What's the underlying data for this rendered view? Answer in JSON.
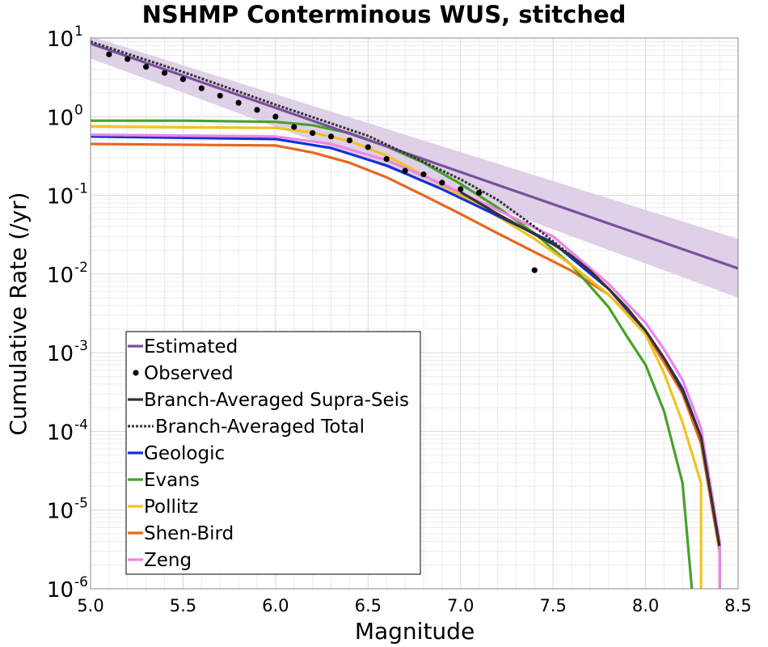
{
  "chart_data": {
    "type": "line",
    "title": "NSHMP Conterminous WUS, stitched",
    "xlabel": "Magnitude",
    "ylabel": "Cumulative Rate (/yr)",
    "xlim": [
      5.0,
      8.5
    ],
    "ylim": [
      1e-06,
      10
    ],
    "yscale": "log",
    "grid": true,
    "legend_position": "bottom-left",
    "x_ticks": [
      "5.0",
      "5.5",
      "6.0",
      "6.5",
      "7.0",
      "7.5",
      "8.0",
      "8.5"
    ],
    "y_ticks": [
      {
        "base": "10",
        "exp": "1",
        "value": 10
      },
      {
        "base": "10",
        "exp": "0",
        "value": 1
      },
      {
        "base": "10",
        "exp": "-1",
        "value": 0.1
      },
      {
        "base": "10",
        "exp": "-2",
        "value": 0.01
      },
      {
        "base": "10",
        "exp": "-3",
        "value": 0.001
      },
      {
        "base": "10",
        "exp": "-4",
        "value": 0.0001
      },
      {
        "base": "10",
        "exp": "-5",
        "value": 1e-05
      },
      {
        "base": "10",
        "exp": "-6",
        "value": 1e-06
      }
    ],
    "uncertainty_band": {
      "name": "Estimated",
      "color": "#dccde6",
      "x": [
        5.0,
        8.5
      ],
      "lower": [
        5.5,
        0.005
      ],
      "upper": [
        10.5,
        0.028
      ]
    },
    "series": [
      {
        "name": "Estimated",
        "kind": "line",
        "color": "#7a4e9c",
        "x": [
          5.0,
          8.5
        ],
        "y": [
          8.5,
          0.0118
        ]
      },
      {
        "name": "Observed",
        "kind": "scatter",
        "color": "#000000",
        "x": [
          5.1,
          5.2,
          5.3,
          5.4,
          5.5,
          5.6,
          5.7,
          5.8,
          5.9,
          6.0,
          6.1,
          6.2,
          6.3,
          6.4,
          6.5,
          6.6,
          6.7,
          6.8,
          6.9,
          7.0,
          7.1,
          7.4
        ],
        "y": [
          6.2,
          5.4,
          4.3,
          3.6,
          3.0,
          2.3,
          1.85,
          1.5,
          1.22,
          1.0,
          0.74,
          0.62,
          0.56,
          0.5,
          0.41,
          0.29,
          0.205,
          0.185,
          0.145,
          0.12,
          0.108,
          0.0112
        ]
      },
      {
        "name": "Branch-Averaged Supra-Seis",
        "kind": "line",
        "color": "#333333",
        "x": [
          7.0,
          7.1,
          7.2,
          7.3,
          7.4,
          7.5,
          7.6,
          7.7,
          7.8,
          7.9,
          8.0,
          8.1,
          8.2,
          8.3,
          8.4
        ],
        "y": [
          0.11,
          0.08,
          0.058,
          0.043,
          0.032,
          0.024,
          0.017,
          0.011,
          0.0065,
          0.0037,
          0.0019,
          0.00085,
          0.00033,
          8.5e-05,
          3.5e-06
        ]
      },
      {
        "name": "Branch-Averaged Total",
        "kind": "dotted",
        "color": "#333333",
        "x": [
          5.0,
          5.5,
          6.0,
          6.5,
          7.0,
          7.2,
          7.4,
          7.6
        ],
        "y": [
          9.0,
          3.7,
          1.42,
          0.57,
          0.16,
          0.088,
          0.04,
          0.017
        ]
      },
      {
        "name": "Geologic",
        "kind": "line",
        "color": "#1432d2",
        "x": [
          5.0,
          6.0,
          6.3,
          6.6,
          6.9,
          7.2,
          7.5,
          7.8,
          8.0,
          8.1,
          8.2,
          8.3,
          8.4,
          8.4
        ],
        "y": [
          0.56,
          0.52,
          0.4,
          0.24,
          0.12,
          0.055,
          0.025,
          0.0065,
          0.0019,
          0.00085,
          0.00035,
          8.5e-05,
          3.5e-06,
          1e-06
        ]
      },
      {
        "name": "Evans",
        "kind": "line",
        "color": "#48a12a",
        "x": [
          5.0,
          5.5,
          6.0,
          6.2,
          6.4,
          6.6,
          6.8,
          7.0,
          7.2,
          7.4,
          7.6,
          7.8,
          7.9,
          8.0,
          8.1,
          8.2,
          8.25
        ],
        "y": [
          0.89,
          0.89,
          0.86,
          0.78,
          0.62,
          0.42,
          0.26,
          0.14,
          0.07,
          0.033,
          0.013,
          0.0038,
          0.0016,
          0.0007,
          0.00018,
          2.2e-05,
          1e-06
        ]
      },
      {
        "name": "Pollitz",
        "kind": "line",
        "color": "#f0c31e",
        "x": [
          5.0,
          6.0,
          6.2,
          6.4,
          6.6,
          6.8,
          7.0,
          7.2,
          7.4,
          7.6,
          7.8,
          8.0,
          8.1,
          8.2,
          8.3,
          8.3
        ],
        "y": [
          0.75,
          0.72,
          0.63,
          0.49,
          0.32,
          0.18,
          0.1,
          0.054,
          0.028,
          0.013,
          0.0055,
          0.0017,
          0.00055,
          0.00013,
          2.2e-05,
          1e-06
        ]
      },
      {
        "name": "Shen-Bird",
        "kind": "line",
        "color": "#e8681e",
        "x": [
          5.0,
          6.0,
          6.2,
          6.4,
          6.6,
          6.8,
          7.0,
          7.2,
          7.4,
          7.6,
          7.8,
          8.0,
          8.1,
          8.2,
          8.3,
          8.4,
          8.4
        ],
        "y": [
          0.45,
          0.43,
          0.35,
          0.26,
          0.17,
          0.1,
          0.058,
          0.033,
          0.019,
          0.011,
          0.0055,
          0.0018,
          0.00075,
          0.0003,
          7e-05,
          3e-06,
          1e-06
        ]
      },
      {
        "name": "Zeng",
        "kind": "line",
        "color": "#f083ea",
        "x": [
          5.0,
          6.0,
          6.3,
          6.6,
          6.9,
          7.2,
          7.5,
          7.8,
          8.0,
          8.1,
          8.2,
          8.3,
          8.4,
          8.4
        ],
        "y": [
          0.59,
          0.56,
          0.45,
          0.28,
          0.14,
          0.065,
          0.03,
          0.0075,
          0.0024,
          0.0011,
          0.00045,
          0.00011,
          4e-06,
          1e-06
        ]
      }
    ],
    "legend": [
      {
        "label": "Estimated",
        "symbol": "line",
        "color": "#7a4e9c"
      },
      {
        "label": "Observed",
        "symbol": "dot",
        "color": "#000000"
      },
      {
        "label": "Branch-Averaged Supra-Seis",
        "symbol": "line",
        "color": "#333333"
      },
      {
        "label": "Branch-Averaged Total",
        "symbol": "dotted",
        "color": "#333333"
      },
      {
        "label": "Geologic",
        "symbol": "line",
        "color": "#1432d2"
      },
      {
        "label": "Evans",
        "symbol": "line",
        "color": "#48a12a"
      },
      {
        "label": "Pollitz",
        "symbol": "line",
        "color": "#f0c31e"
      },
      {
        "label": "Shen-Bird",
        "symbol": "line",
        "color": "#e8681e"
      },
      {
        "label": "Zeng",
        "symbol": "line",
        "color": "#f083ea"
      }
    ]
  }
}
